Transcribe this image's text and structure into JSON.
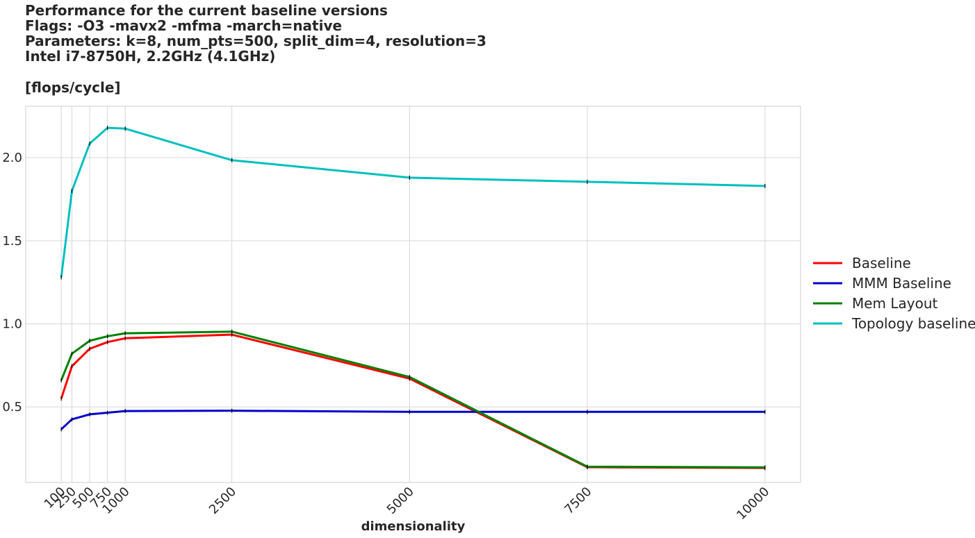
{
  "chart_data": {
    "type": "line",
    "title_lines": [
      "Performance for the current baseline versions",
      "Flags: -O3 -mavx2 -mfma -march=native",
      "Parameters: k=8, num_pts=500, split_dim=4, resolution=3",
      "Intel i7-8750H, 2.2GHz (4.1GHz)"
    ],
    "ylabel": "[flops/cycle]",
    "xlabel": "dimensionality",
    "x": [
      100,
      250,
      500,
      750,
      1000,
      2500,
      5000,
      7500,
      10000
    ],
    "xticks": [
      "100",
      "250",
      "500",
      "750",
      "1000",
      "2500",
      "5000",
      "7500",
      "10000"
    ],
    "yticks": [
      "0.5",
      "1.0",
      "1.5",
      "2.0"
    ],
    "ytick_values": [
      0.5,
      1.0,
      1.5,
      2.0
    ],
    "xlim": [
      -400,
      10500
    ],
    "ylim": [
      0.045,
      2.31
    ],
    "grid": true,
    "legend_position": "right",
    "series": [
      {
        "name": "Baseline",
        "color": "#ff0000",
        "values": [
          0.55,
          0.745,
          0.85,
          0.89,
          0.913,
          0.935,
          0.67,
          0.137,
          0.132
        ]
      },
      {
        "name": "MMM Baseline",
        "color": "#0000cc",
        "values": [
          0.365,
          0.425,
          0.455,
          0.465,
          0.475,
          0.477,
          0.47,
          0.47,
          0.47
        ]
      },
      {
        "name": "Mem Layout",
        "color": "#008000",
        "values": [
          0.66,
          0.82,
          0.898,
          0.925,
          0.943,
          0.953,
          0.68,
          0.14,
          0.136
        ]
      },
      {
        "name": "Topology baseline",
        "color": "#00bfbf",
        "values": [
          1.28,
          1.8,
          2.085,
          2.18,
          2.175,
          1.985,
          1.88,
          1.855,
          1.83
        ]
      }
    ]
  }
}
